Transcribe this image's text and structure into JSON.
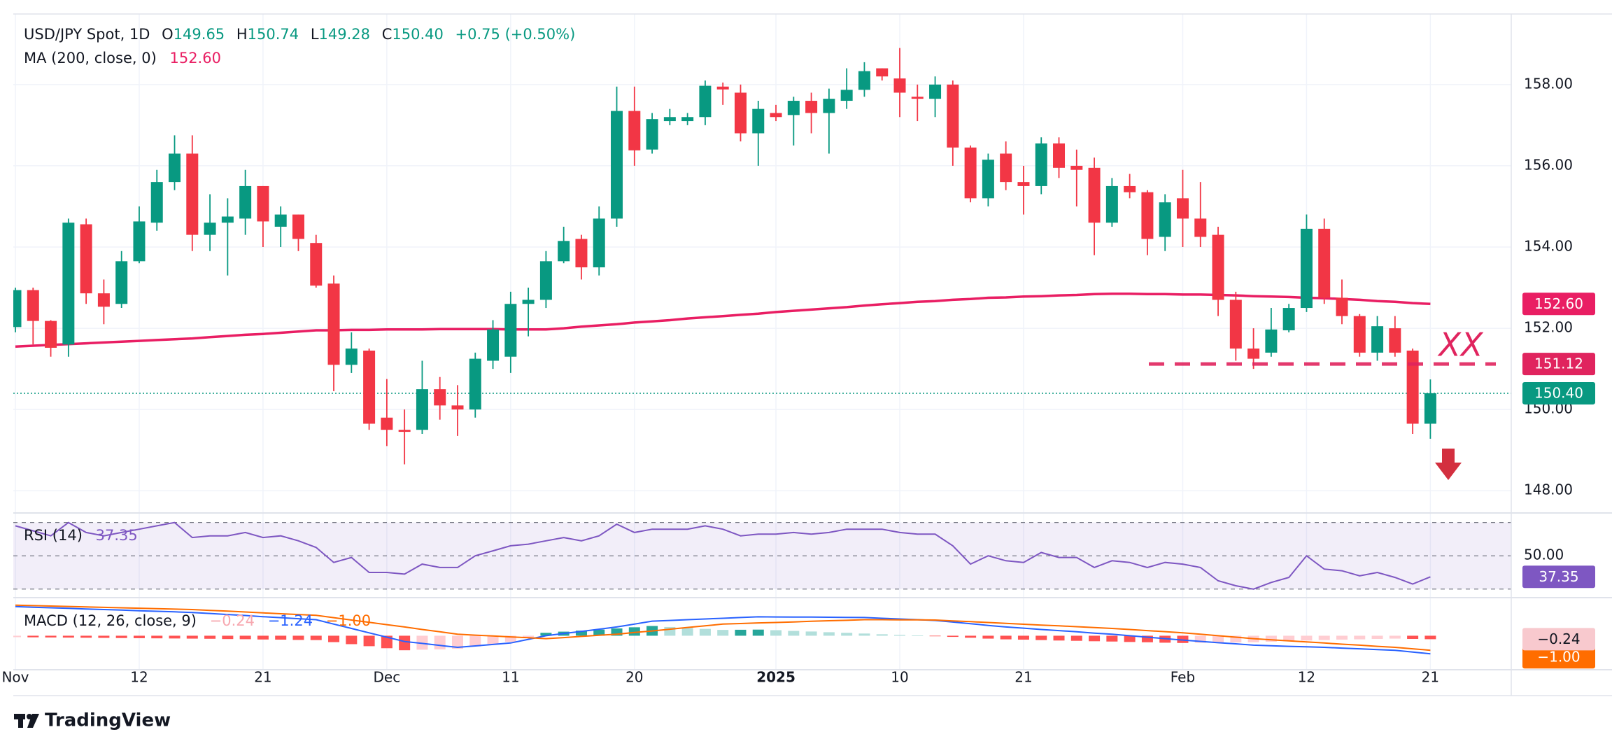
{
  "branding": "TradingView",
  "chart_data": [
    {
      "type": "candlestick",
      "title": "USD/JPY Spot, 1D",
      "header": [
        {
          "label": "O",
          "value": "149.65"
        },
        {
          "label": "H",
          "value": "150.74"
        },
        {
          "label": "L",
          "value": "149.28"
        },
        {
          "label": "C",
          "value": "150.40"
        }
      ],
      "change": "+0.75 (+0.50%)",
      "categories": [
        "Nov",
        null,
        null,
        null,
        null,
        null,
        null,
        "12",
        null,
        null,
        null,
        null,
        null,
        null,
        "21",
        null,
        null,
        null,
        null,
        null,
        null,
        "Dec",
        null,
        null,
        null,
        null,
        null,
        null,
        "11",
        null,
        null,
        null,
        null,
        null,
        null,
        "20",
        null,
        null,
        null,
        null,
        null,
        null,
        null,
        "2025",
        null,
        null,
        null,
        null,
        null,
        null,
        "10",
        null,
        null,
        null,
        null,
        null,
        null,
        "21",
        null,
        null,
        null,
        null,
        null,
        null,
        null,
        null,
        "Feb",
        null,
        null,
        null,
        null,
        null,
        null,
        "12",
        null,
        null,
        null,
        null,
        null,
        null,
        "21"
      ],
      "open": [
        152.03,
        152.94,
        152.18,
        151.6,
        154.56,
        152.86,
        152.6,
        153.65,
        154.6,
        155.6,
        156.3,
        154.3,
        154.6,
        154.7,
        155.5,
        154.5,
        154.8,
        154.1,
        153.1,
        151.1,
        151.45,
        149.8,
        149.5,
        149.5,
        150.5,
        150.1,
        150.0,
        151.2,
        151.3,
        152.6,
        152.7,
        153.65,
        154.2,
        153.5,
        154.7,
        157.35,
        156.4,
        157.1,
        157.1,
        157.2,
        157.95,
        157.8,
        156.8,
        157.3,
        157.25,
        157.6,
        157.3,
        157.6,
        157.87,
        158.4,
        158.15,
        157.7,
        157.65,
        158.0,
        156.45,
        155.2,
        156.3,
        155.6,
        155.5,
        156.55,
        156.0,
        155.95,
        154.6,
        155.5,
        155.35,
        154.25,
        155.2,
        154.7,
        154.3,
        152.7,
        151.5,
        151.4,
        151.95,
        152.5,
        154.45,
        152.75,
        152.3,
        151.4,
        152.0,
        151.45,
        149.65
      ],
      "high": [
        153.0,
        153.0,
        152.2,
        154.7,
        154.7,
        153.2,
        153.9,
        155.0,
        155.9,
        156.75,
        156.75,
        155.3,
        155.2,
        155.9,
        155.5,
        155.0,
        154.8,
        154.3,
        153.3,
        151.9,
        151.5,
        150.75,
        150.0,
        151.2,
        150.8,
        150.6,
        151.4,
        152.2,
        152.9,
        153.0,
        153.9,
        154.5,
        154.3,
        155.0,
        157.95,
        157.95,
        157.3,
        157.4,
        157.3,
        158.1,
        158.05,
        158.0,
        157.6,
        157.5,
        157.7,
        157.8,
        157.9,
        158.4,
        158.55,
        158.4,
        158.9,
        158.0,
        158.2,
        158.1,
        156.5,
        156.3,
        156.6,
        156.0,
        156.7,
        156.7,
        156.4,
        156.2,
        155.7,
        155.8,
        155.4,
        155.3,
        155.9,
        155.6,
        154.5,
        152.9,
        152.0,
        152.5,
        152.6,
        154.8,
        154.7,
        153.2,
        152.35,
        152.3,
        152.3,
        151.5,
        150.74
      ],
      "low": [
        151.9,
        151.6,
        151.3,
        151.3,
        152.6,
        152.1,
        152.5,
        153.6,
        154.4,
        155.4,
        153.9,
        153.9,
        153.3,
        154.3,
        154.0,
        154.0,
        153.9,
        153.0,
        150.45,
        150.9,
        149.5,
        149.1,
        148.65,
        149.4,
        149.75,
        149.35,
        149.8,
        151.0,
        150.9,
        151.8,
        152.5,
        153.6,
        153.2,
        153.3,
        154.5,
        156.0,
        156.3,
        157.0,
        157.0,
        157.0,
        157.5,
        156.6,
        156.0,
        157.1,
        156.5,
        156.8,
        156.3,
        157.4,
        157.7,
        158.1,
        157.2,
        157.1,
        157.2,
        156.0,
        155.1,
        155.0,
        155.4,
        154.8,
        155.3,
        155.7,
        155.0,
        153.8,
        154.5,
        155.2,
        153.8,
        153.9,
        154.0,
        154.0,
        152.3,
        151.2,
        151.0,
        151.3,
        151.9,
        152.4,
        152.6,
        152.1,
        151.3,
        151.2,
        151.3,
        149.4,
        149.28
      ],
      "close": [
        152.94,
        152.18,
        151.52,
        154.6,
        152.86,
        152.53,
        153.65,
        154.63,
        155.6,
        156.3,
        154.3,
        154.6,
        154.75,
        155.5,
        154.63,
        154.8,
        154.2,
        153.05,
        151.1,
        151.5,
        149.65,
        149.5,
        149.45,
        150.5,
        150.1,
        150.0,
        151.25,
        151.97,
        152.6,
        152.7,
        153.65,
        154.15,
        153.5,
        154.7,
        157.35,
        156.38,
        157.15,
        157.2,
        157.2,
        157.97,
        157.88,
        156.8,
        157.4,
        157.2,
        157.6,
        157.3,
        157.65,
        157.87,
        158.33,
        158.2,
        157.8,
        157.65,
        158.0,
        156.45,
        155.2,
        156.15,
        155.6,
        155.5,
        156.55,
        155.95,
        155.9,
        154.6,
        155.5,
        155.35,
        154.2,
        155.1,
        154.7,
        154.25,
        152.7,
        151.5,
        151.25,
        151.97,
        152.5,
        154.45,
        152.75,
        152.3,
        151.4,
        152.05,
        151.4,
        149.65,
        150.4
      ],
      "up_color": "#089981",
      "down_color": "#f23645",
      "last_label": "150.40",
      "ylim": [
        147.47,
        159.72
      ],
      "yticks": [
        {
          "value": 148,
          "label": "148.00"
        },
        {
          "value": 150,
          "label": "150.00"
        },
        {
          "value": 152,
          "label": "152.00"
        },
        {
          "value": 154,
          "label": "154.00"
        },
        {
          "value": 156,
          "label": "156.00"
        },
        {
          "value": 158,
          "label": "158.00"
        }
      ],
      "grid": true,
      "overlay": {
        "name": "MA (200, close, 0)",
        "color": "#e91e63",
        "values": [
          151.55,
          151.57,
          151.59,
          151.61,
          151.63,
          151.65,
          151.67,
          151.69,
          151.71,
          151.73,
          151.75,
          151.78,
          151.81,
          151.84,
          151.86,
          151.89,
          151.92,
          151.95,
          151.95,
          151.96,
          151.96,
          151.97,
          151.97,
          151.97,
          151.98,
          151.98,
          151.98,
          151.98,
          151.97,
          151.97,
          151.97,
          152.0,
          152.04,
          152.07,
          152.1,
          152.14,
          152.17,
          152.2,
          152.24,
          152.27,
          152.3,
          152.33,
          152.36,
          152.4,
          152.43,
          152.46,
          152.49,
          152.52,
          152.56,
          152.59,
          152.62,
          152.65,
          152.67,
          152.7,
          152.72,
          152.75,
          152.76,
          152.78,
          152.79,
          152.81,
          152.82,
          152.84,
          152.85,
          152.85,
          152.84,
          152.84,
          152.83,
          152.83,
          152.82,
          152.81,
          152.79,
          152.78,
          152.77,
          152.75,
          152.74,
          152.72,
          152.7,
          152.67,
          152.65,
          152.62,
          152.6
        ],
        "last_label": "152.60"
      },
      "level": {
        "value": 151.12,
        "label": "151.12",
        "color": "#e0245e"
      },
      "annotation": "XX"
    },
    {
      "type": "line",
      "name": "RSI (14)",
      "color": "#7e57c2",
      "values": [
        68,
        65,
        62,
        70,
        64,
        62,
        64,
        66,
        68,
        70,
        61,
        62,
        62,
        64,
        61,
        62,
        59,
        55,
        46,
        49,
        40,
        40,
        39,
        45,
        43,
        43,
        50,
        53,
        56,
        57,
        59,
        61,
        59,
        62,
        69,
        64,
        66,
        66,
        66,
        68,
        66,
        62,
        63,
        63,
        64,
        63,
        64,
        66,
        66,
        66,
        64,
        63,
        63,
        56,
        45,
        50,
        47,
        46,
        52,
        49,
        49,
        43,
        47,
        46,
        43,
        46,
        45,
        43,
        35,
        32,
        30,
        34,
        37,
        50,
        42,
        41,
        38,
        40,
        37,
        33,
        37.35
      ],
      "ylim": [
        25.7,
        74.9
      ],
      "yticks": [
        {
          "value": 50,
          "label": "50.00"
        }
      ],
      "bands": [
        70,
        30
      ]
    },
    {
      "type": "macd",
      "name": "MACD (12, 26, close, 9)",
      "histogram": {
        "colors": [
          "#26a69a",
          "#b2dfdb",
          "#ffcdd2",
          "#ff5252"
        ],
        "values": [
          -0.1,
          -0.11,
          -0.12,
          -0.13,
          -0.14,
          -0.15,
          -0.16,
          -0.17,
          -0.18,
          -0.19,
          -0.2,
          -0.21,
          -0.23,
          -0.24,
          -0.26,
          -0.27,
          -0.29,
          -0.3,
          -0.44,
          -0.58,
          -0.72,
          -0.86,
          -1.0,
          -0.96,
          -0.94,
          -0.9,
          -0.74,
          -0.58,
          -0.42,
          -0.11,
          0.2,
          0.28,
          0.35,
          0.42,
          0.5,
          0.58,
          0.67,
          0.6,
          0.53,
          0.47,
          0.4,
          0.41,
          0.42,
          0.38,
          0.33,
          0.29,
          0.24,
          0.2,
          0.15,
          0.1,
          0.06,
          0.01,
          -0.03,
          -0.08,
          -0.14,
          -0.2,
          -0.25,
          -0.27,
          -0.3,
          -0.33,
          -0.35,
          -0.38,
          -0.4,
          -0.43,
          -0.45,
          -0.48,
          -0.5,
          -0.49,
          -0.48,
          -0.46,
          -0.45,
          -0.41,
          -0.38,
          -0.33,
          -0.3,
          -0.27,
          -0.25,
          -0.22,
          -0.2,
          -0.22,
          -0.24
        ],
        "last_label": "−0.24"
      },
      "macd": {
        "color": "#2962ff",
        "values": [
          2.0,
          1.96,
          1.92,
          1.88,
          1.84,
          1.8,
          1.76,
          1.72,
          1.68,
          1.64,
          1.6,
          1.53,
          1.46,
          1.39,
          1.31,
          1.24,
          1.17,
          1.1,
          0.8,
          0.5,
          0.2,
          -0.1,
          -0.4,
          -0.53,
          -0.67,
          -0.8,
          -0.7,
          -0.6,
          -0.5,
          -0.25,
          0.0,
          0.15,
          0.3,
          0.45,
          0.6,
          0.8,
          1.0,
          1.05,
          1.1,
          1.15,
          1.2,
          1.25,
          1.3,
          1.29,
          1.28,
          1.28,
          1.27,
          1.26,
          1.25,
          1.2,
          1.15,
          1.1,
          1.05,
          0.94,
          0.83,
          0.71,
          0.6,
          0.52,
          0.43,
          0.35,
          0.27,
          0.18,
          0.1,
          0.0,
          -0.1,
          -0.2,
          -0.3,
          -0.39,
          -0.48,
          -0.56,
          -0.65,
          -0.69,
          -0.73,
          -0.76,
          -0.8,
          -0.85,
          -0.9,
          -0.95,
          -1.0,
          -1.12,
          -1.24
        ],
        "last_label": "−1.24"
      },
      "signal": {
        "color": "#ff6d00",
        "values": [
          2.1,
          2.07,
          2.04,
          2.01,
          1.98,
          1.95,
          1.92,
          1.89,
          1.86,
          1.83,
          1.8,
          1.74,
          1.69,
          1.63,
          1.57,
          1.51,
          1.46,
          1.4,
          1.24,
          1.08,
          0.92,
          0.76,
          0.6,
          0.43,
          0.27,
          0.1,
          0.04,
          -0.02,
          -0.08,
          -0.14,
          -0.2,
          -0.13,
          -0.05,
          0.03,
          0.1,
          0.22,
          0.33,
          0.45,
          0.57,
          0.68,
          0.8,
          0.84,
          0.88,
          0.91,
          0.95,
          0.99,
          1.03,
          1.06,
          1.1,
          1.1,
          1.09,
          1.09,
          1.08,
          1.02,
          0.97,
          0.91,
          0.85,
          0.79,
          0.73,
          0.68,
          0.62,
          0.56,
          0.5,
          0.43,
          0.35,
          0.28,
          0.2,
          0.1,
          0.0,
          -0.1,
          -0.2,
          -0.28,
          -0.35,
          -0.43,
          -0.5,
          -0.58,
          -0.65,
          -0.73,
          -0.8,
          -0.9,
          -1.0
        ],
        "last_label": "−1.00"
      },
      "ylim": [
        -2.29,
        2.57
      ]
    }
  ]
}
